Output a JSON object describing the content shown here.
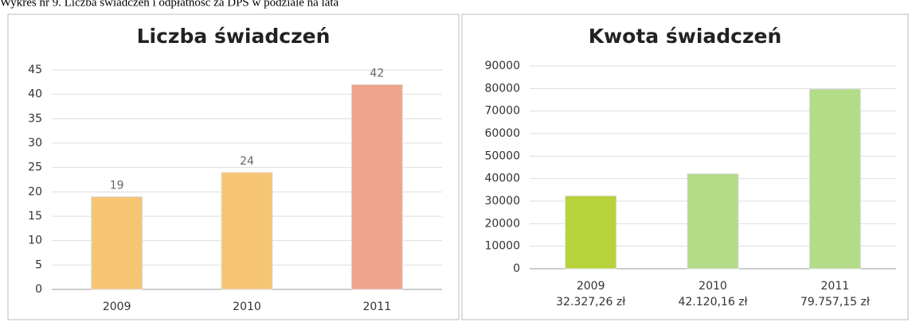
{
  "caption": "Wykres nr 9. Liczba świadczeń i odpłatność za DPS w podziale na lata",
  "chart_data": [
    {
      "type": "bar",
      "title": "Liczba świadczeń",
      "categories": [
        "2009",
        "2010",
        "2011"
      ],
      "values": [
        19,
        24,
        42
      ],
      "colors": [
        "#f6c574",
        "#f6c574",
        "#f0a48c"
      ],
      "ylim": [
        0,
        45
      ],
      "yticks": [
        0,
        5,
        10,
        15,
        20,
        25,
        30,
        35,
        40,
        45
      ],
      "grid": true,
      "data_labels": true
    },
    {
      "type": "bar",
      "title": "Kwota świadczeń",
      "categories": [
        "2009",
        "2010",
        "2011"
      ],
      "values": [
        32327.26,
        42120.16,
        79757.15
      ],
      "value_labels": [
        "32.327,26 zł",
        "42.120,16 zł",
        "79.757,15 zł"
      ],
      "colors": [
        "#b6d33a",
        "#b2dc88",
        "#b2dc88"
      ],
      "ylim": [
        0,
        90000
      ],
      "yticks": [
        0,
        10000,
        20000,
        30000,
        40000,
        50000,
        60000,
        70000,
        80000,
        90000
      ],
      "grid": true,
      "data_labels": false
    }
  ]
}
